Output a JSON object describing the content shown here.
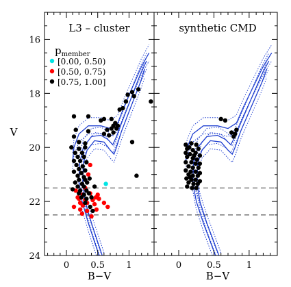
{
  "chart_data": [
    {
      "type": "scatter",
      "panel": "left",
      "title": "L3 – cluster",
      "xlabel": "B−V",
      "ylabel": "V",
      "xlim": [
        -0.35,
        1.4
      ],
      "ylim": [
        24,
        15
      ],
      "y_inverted": true,
      "xticks": [
        0,
        0.5,
        1
      ],
      "xtick_labels": [
        "0",
        "0.5",
        "1"
      ],
      "yticks": [
        16,
        18,
        20,
        22,
        24
      ],
      "ytick_labels": [
        "16",
        "18",
        "20",
        "22",
        "24"
      ],
      "legend": {
        "title": "p",
        "title_sub": "member",
        "placement": "upper-left",
        "entries": [
          {
            "label": "[0.00, 0.50)",
            "color": "#00e5e5"
          },
          {
            "label": "[0.50, 0.75)",
            "color": "#ff0000"
          },
          {
            "label": "[0.75, 1.00]",
            "color": "#000000"
          }
        ]
      },
      "hlines": [
        21.5,
        22.5
      ],
      "isochrone": {
        "color": "#1f3fd0",
        "main": [
          [
            0.6,
            24.2
          ],
          [
            0.5,
            23.5
          ],
          [
            0.4,
            22.8
          ],
          [
            0.3,
            22
          ],
          [
            0.26,
            21.3
          ],
          [
            0.27,
            20.6
          ],
          [
            0.33,
            20.1
          ],
          [
            0.45,
            19.75
          ],
          [
            0.6,
            19.8
          ],
          [
            0.7,
            20.1
          ],
          [
            0.76,
            20.25
          ],
          [
            0.8,
            20.0
          ],
          [
            0.88,
            19.4
          ],
          [
            0.98,
            18.8
          ],
          [
            1.08,
            18.2
          ],
          [
            1.18,
            17.6
          ],
          [
            1.25,
            17.1
          ]
        ],
        "bluer_branch": [
          [
            0.55,
            24.2
          ],
          [
            0.45,
            23.5
          ],
          [
            0.35,
            22.8
          ],
          [
            0.25,
            22
          ],
          [
            0.2,
            21.3
          ],
          [
            0.21,
            20.6
          ],
          [
            0.27,
            20.0
          ],
          [
            0.4,
            19.6
          ],
          [
            0.55,
            19.55
          ],
          [
            0.66,
            19.7
          ],
          [
            0.74,
            19.9
          ],
          [
            0.8,
            19.6
          ],
          [
            0.88,
            19.1
          ],
          [
            0.98,
            18.5
          ],
          [
            1.08,
            17.9
          ],
          [
            1.18,
            17.3
          ],
          [
            1.28,
            16.8
          ]
        ],
        "upper_branch": [
          [
            0.1,
            20.5
          ],
          [
            0.12,
            20.0
          ],
          [
            0.2,
            19.5
          ],
          [
            0.35,
            19.2
          ],
          [
            0.55,
            19.2
          ],
          [
            0.7,
            19.3
          ],
          [
            0.82,
            19.1
          ],
          [
            0.92,
            18.5
          ],
          [
            1.05,
            17.8
          ],
          [
            1.2,
            17.0
          ],
          [
            1.32,
            16.5
          ]
        ],
        "dotted_offsets": [
          0.3,
          -0.3
        ]
      },
      "series": [
        {
          "name": "[0.00, 0.50)",
          "color": "#00e5e5",
          "points": [
            [
              0.63,
              21.35
            ]
          ]
        },
        {
          "name": "[0.50, 0.75)",
          "color": "#ff0000",
          "points": [
            [
              0.38,
              20.65
            ],
            [
              0.35,
              21.0
            ],
            [
              0.15,
              21.6
            ],
            [
              0.18,
              21.85
            ],
            [
              0.26,
              21.75
            ],
            [
              0.3,
              21.95
            ],
            [
              0.42,
              21.95
            ],
            [
              0.52,
              21.9
            ],
            [
              0.22,
              22.05
            ],
            [
              0.26,
              22.15
            ],
            [
              0.33,
              22.05
            ],
            [
              0.45,
              22.1
            ],
            [
              0.6,
              22.05
            ],
            [
              0.12,
              22.2
            ],
            [
              0.22,
              22.3
            ],
            [
              0.33,
              22.35
            ],
            [
              0.48,
              22.3
            ],
            [
              0.25,
              22.45
            ],
            [
              0.4,
              22.55
            ],
            [
              0.66,
              22.2
            ],
            [
              0.38,
              21.7
            ],
            [
              0.47,
              21.85
            ],
            [
              0.3,
              21.5
            ],
            [
              0.5,
              21.75
            ],
            [
              0.2,
              21.9
            ]
          ]
        },
        {
          "name": "[0.75, 1.00]",
          "color": "#000000",
          "points": [
            [
              0.12,
              18.85
            ],
            [
              0.35,
              18.85
            ],
            [
              0.15,
              19.35
            ],
            [
              0.35,
              19.4
            ],
            [
              0.12,
              19.6
            ],
            [
              0.2,
              19.8
            ],
            [
              0.3,
              19.85
            ],
            [
              0.08,
              20.0
            ],
            [
              0.2,
              20.05
            ],
            [
              0.3,
              20.0
            ],
            [
              0.14,
              20.2
            ],
            [
              0.25,
              20.2
            ],
            [
              0.18,
              20.35
            ],
            [
              0.28,
              20.35
            ],
            [
              0.12,
              20.5
            ],
            [
              0.22,
              20.5
            ],
            [
              0.32,
              20.55
            ],
            [
              0.16,
              20.65
            ],
            [
              0.26,
              20.7
            ],
            [
              0.2,
              20.8
            ],
            [
              0.3,
              20.85
            ],
            [
              0.12,
              20.9
            ],
            [
              0.24,
              20.95
            ],
            [
              0.18,
              21.05
            ],
            [
              0.28,
              21.1
            ],
            [
              0.2,
              21.2
            ],
            [
              0.3,
              21.2
            ],
            [
              0.14,
              21.3
            ],
            [
              0.25,
              21.35
            ],
            [
              0.33,
              21.3
            ],
            [
              0.18,
              21.45
            ],
            [
              0.28,
              21.45
            ],
            [
              0.1,
              21.55
            ],
            [
              0.22,
              21.6
            ],
            [
              0.32,
              21.6
            ],
            [
              0.2,
              21.7
            ],
            [
              0.28,
              21.75
            ],
            [
              0.36,
              21.7
            ],
            [
              0.24,
              21.85
            ],
            [
              0.32,
              21.9
            ],
            [
              0.4,
              21.85
            ],
            [
              0.3,
              22.05
            ],
            [
              0.38,
              22.2
            ],
            [
              0.42,
              22.35
            ],
            [
              0.45,
              21.45
            ],
            [
              0.37,
              21.15
            ],
            [
              0.55,
              19.0
            ],
            [
              0.6,
              18.95
            ],
            [
              0.68,
              19.55
            ],
            [
              0.72,
              19.3
            ],
            [
              0.75,
              19.2
            ],
            [
              0.78,
              19.1
            ],
            [
              0.72,
              18.95
            ],
            [
              0.8,
              19.3
            ],
            [
              0.75,
              19.45
            ],
            [
              0.82,
              19.2
            ],
            [
              0.85,
              18.6
            ],
            [
              0.9,
              18.55
            ],
            [
              0.95,
              18.3
            ],
            [
              0.98,
              18.05
            ],
            [
              1.05,
              17.95
            ],
            [
              1.08,
              18.1
            ],
            [
              1.15,
              17.85
            ],
            [
              1.35,
              18.3
            ],
            [
              1.05,
              19.8
            ],
            [
              1.12,
              21.05
            ],
            [
              0.6,
              19.5
            ],
            [
              0.65,
              19.35
            ]
          ]
        }
      ]
    },
    {
      "type": "scatter",
      "panel": "right",
      "title": "synthetic CMD",
      "xlabel": "B−V",
      "ylabel": "",
      "xlim": [
        -0.35,
        1.4
      ],
      "ylim": [
        24,
        15
      ],
      "y_inverted": true,
      "xticks": [
        0,
        0.5,
        1
      ],
      "xtick_labels": [
        "0",
        "0.5",
        "1"
      ],
      "hlines": [
        21.5,
        22.5
      ],
      "isochrone": {
        "color": "#1f3fd0",
        "main": [
          [
            0.6,
            24.2
          ],
          [
            0.5,
            23.5
          ],
          [
            0.4,
            22.8
          ],
          [
            0.3,
            22
          ],
          [
            0.26,
            21.3
          ],
          [
            0.27,
            20.6
          ],
          [
            0.33,
            20.1
          ],
          [
            0.45,
            19.75
          ],
          [
            0.6,
            19.8
          ],
          [
            0.7,
            20.1
          ],
          [
            0.76,
            20.25
          ],
          [
            0.8,
            20.0
          ],
          [
            0.88,
            19.4
          ],
          [
            0.98,
            18.8
          ],
          [
            1.08,
            18.2
          ],
          [
            1.18,
            17.6
          ],
          [
            1.25,
            17.1
          ]
        ],
        "bluer_branch": [
          [
            0.55,
            24.2
          ],
          [
            0.45,
            23.5
          ],
          [
            0.35,
            22.8
          ],
          [
            0.25,
            22
          ],
          [
            0.2,
            21.3
          ],
          [
            0.21,
            20.6
          ],
          [
            0.27,
            20.0
          ],
          [
            0.4,
            19.6
          ],
          [
            0.55,
            19.55
          ],
          [
            0.66,
            19.7
          ],
          [
            0.74,
            19.9
          ],
          [
            0.8,
            19.6
          ],
          [
            0.88,
            19.1
          ],
          [
            0.98,
            18.5
          ],
          [
            1.08,
            17.9
          ],
          [
            1.18,
            17.3
          ],
          [
            1.28,
            16.8
          ]
        ],
        "upper_branch": [
          [
            0.1,
            20.5
          ],
          [
            0.12,
            20.0
          ],
          [
            0.2,
            19.5
          ],
          [
            0.35,
            19.2
          ],
          [
            0.55,
            19.2
          ],
          [
            0.7,
            19.3
          ],
          [
            0.82,
            19.1
          ],
          [
            0.92,
            18.5
          ],
          [
            1.05,
            17.8
          ],
          [
            1.2,
            17.0
          ],
          [
            1.32,
            16.5
          ]
        ],
        "dotted_offsets": [
          0.3,
          -0.3
        ]
      },
      "series": [
        {
          "name": "",
          "color": "#000000",
          "points": [
            [
              0.1,
              19.9
            ],
            [
              0.18,
              19.85
            ],
            [
              0.25,
              19.9
            ],
            [
              0.12,
              20.05
            ],
            [
              0.2,
              20.1
            ],
            [
              0.28,
              20.05
            ],
            [
              0.1,
              20.2
            ],
            [
              0.16,
              20.25
            ],
            [
              0.24,
              20.2
            ],
            [
              0.3,
              20.3
            ],
            [
              0.12,
              20.35
            ],
            [
              0.2,
              20.4
            ],
            [
              0.26,
              20.45
            ],
            [
              0.1,
              20.55
            ],
            [
              0.18,
              20.55
            ],
            [
              0.24,
              20.6
            ],
            [
              0.3,
              20.6
            ],
            [
              0.14,
              20.7
            ],
            [
              0.2,
              20.75
            ],
            [
              0.28,
              20.75
            ],
            [
              0.1,
              20.85
            ],
            [
              0.17,
              20.9
            ],
            [
              0.24,
              20.9
            ],
            [
              0.3,
              20.95
            ],
            [
              0.14,
              21.0
            ],
            [
              0.2,
              21.05
            ],
            [
              0.27,
              21.05
            ],
            [
              0.11,
              21.15
            ],
            [
              0.18,
              21.2
            ],
            [
              0.24,
              21.2
            ],
            [
              0.3,
              21.25
            ],
            [
              0.14,
              21.3
            ],
            [
              0.21,
              21.35
            ],
            [
              0.27,
              21.35
            ],
            [
              0.12,
              21.45
            ],
            [
              0.19,
              21.5
            ],
            [
              0.25,
              21.5
            ],
            [
              0.15,
              20.0
            ],
            [
              0.22,
              20.3
            ],
            [
              0.16,
              21.1
            ],
            [
              0.6,
              18.95
            ],
            [
              0.66,
              19.0
            ],
            [
              0.75,
              19.45
            ],
            [
              0.8,
              19.5
            ],
            [
              0.82,
              19.35
            ],
            [
              0.78,
              19.6
            ]
          ]
        }
      ]
    }
  ]
}
